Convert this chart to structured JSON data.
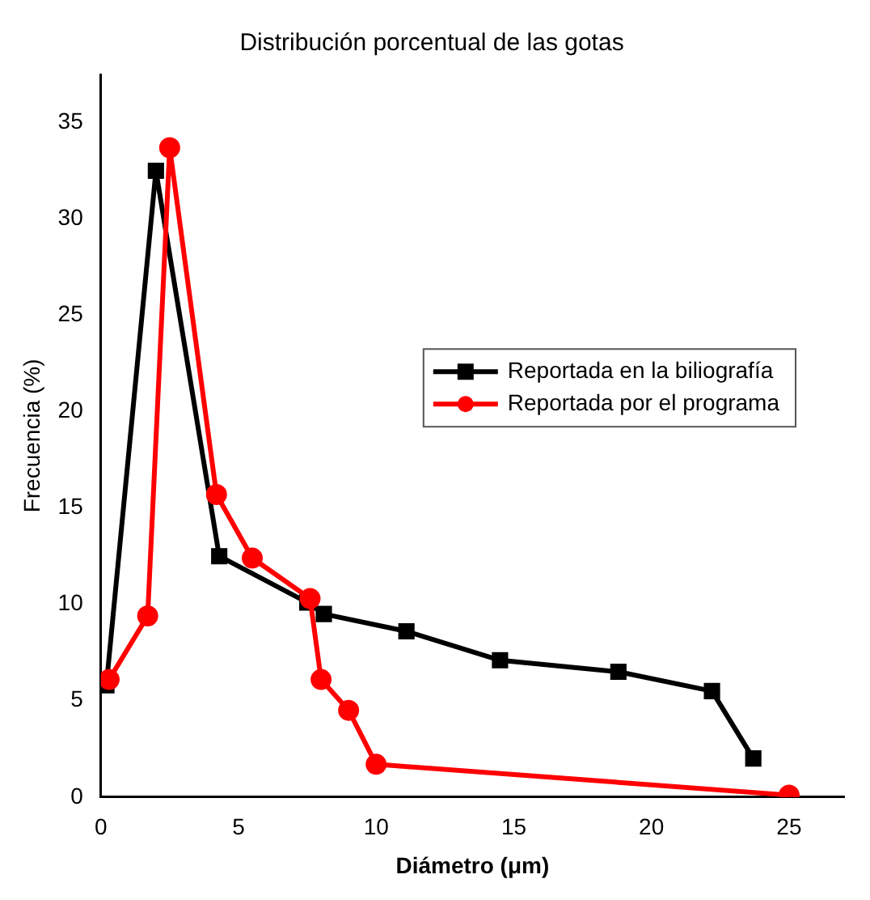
{
  "chart_data": {
    "type": "line",
    "title": "Distribución porcentual de las gotas",
    "xlabel": "Diámetro (μm)",
    "ylabel": "Frecuencia (%)",
    "series": [
      {
        "name": "Reportada en la biliografía",
        "color": "#000000",
        "marker": "square",
        "x": [
          0.2,
          2,
          4.3,
          7.5,
          8.1,
          11.1,
          14.5,
          18.8,
          22.2,
          23.7
        ],
        "values": [
          5.8,
          32.5,
          12.5,
          10.1,
          9.5,
          8.6,
          7.1,
          6.5,
          5.5,
          2.0
        ]
      },
      {
        "name": "Reportada por el programa",
        "color": "#ff0000",
        "marker": "circle",
        "x": [
          0.3,
          1.7,
          2.5,
          4.2,
          5.5,
          7.6,
          8.0,
          9.0,
          10.0,
          25
        ],
        "values": [
          6.1,
          9.4,
          33.7,
          15.7,
          12.4,
          10.3,
          6.1,
          4.5,
          1.7,
          0.1
        ]
      }
    ],
    "xlim": [
      0,
      27
    ],
    "xticks": [
      0,
      5,
      10,
      15,
      20,
      25
    ],
    "ylim": [
      0,
      37.5
    ],
    "yticks": [
      0,
      5,
      10,
      15,
      20,
      25,
      30,
      35
    ],
    "grid": false,
    "legend": "right",
    "line_style": "solid"
  }
}
